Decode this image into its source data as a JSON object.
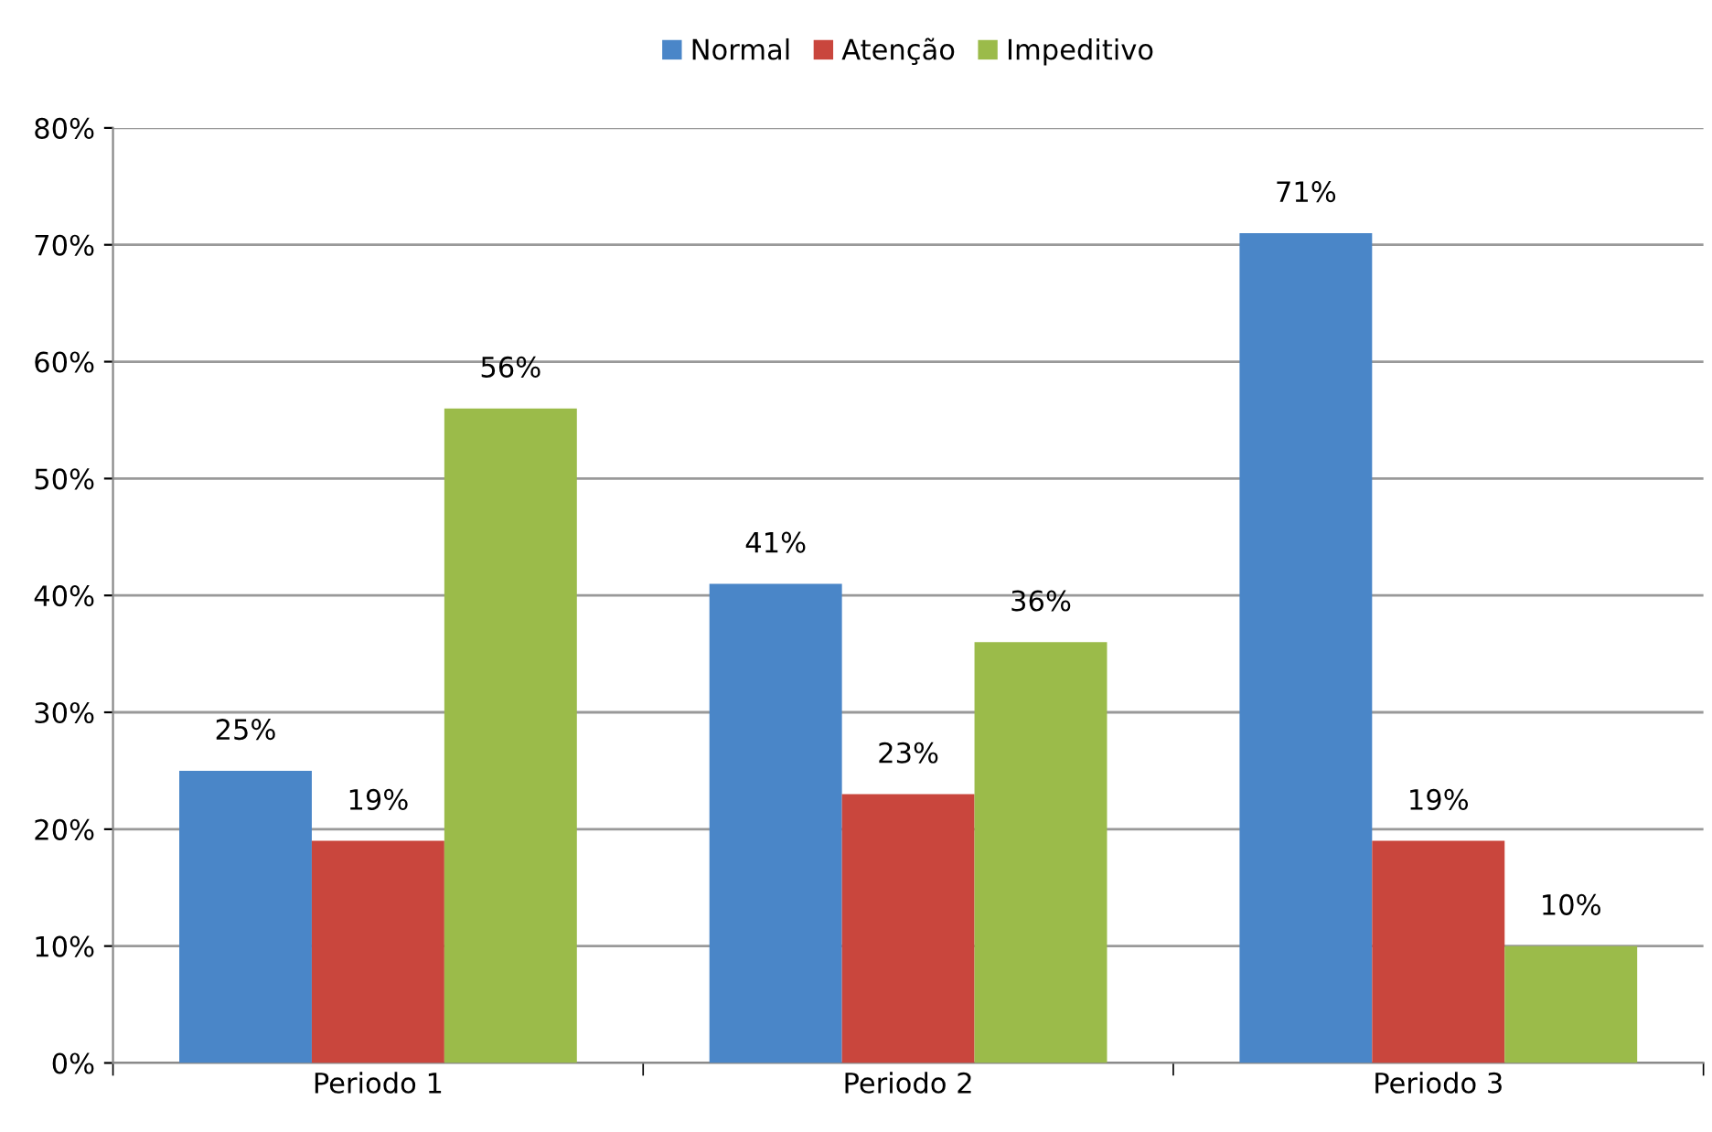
{
  "chart_data": {
    "type": "bar",
    "categories": [
      "Periodo 1",
      "Periodo 2",
      "Periodo 3"
    ],
    "series": [
      {
        "name": "Normal",
        "color": "#4a86c8",
        "values": [
          25,
          41,
          71
        ],
        "value_labels": [
          "25%",
          "41%",
          "71%"
        ]
      },
      {
        "name": "Atenção",
        "color": "#c9463d",
        "values": [
          19,
          23,
          19
        ],
        "value_labels": [
          "19%",
          "23%",
          "19%"
        ]
      },
      {
        "name": "Impeditivo",
        "color": "#9bbb4a",
        "values": [
          56,
          36,
          10
        ],
        "value_labels": [
          "56%",
          "36%",
          "10%"
        ]
      }
    ],
    "ylim": [
      0,
      80
    ],
    "yticks": [
      {
        "value": 0,
        "label": "0%"
      },
      {
        "value": 10,
        "label": "10%"
      },
      {
        "value": 20,
        "label": "20%"
      },
      {
        "value": 30,
        "label": "30%"
      },
      {
        "value": 40,
        "label": "40%"
      },
      {
        "value": 50,
        "label": "50%"
      },
      {
        "value": 60,
        "label": "60%"
      },
      {
        "value": 70,
        "label": "70%"
      },
      {
        "value": 80,
        "label": "80%"
      }
    ],
    "grid": "y",
    "legend": "top"
  }
}
